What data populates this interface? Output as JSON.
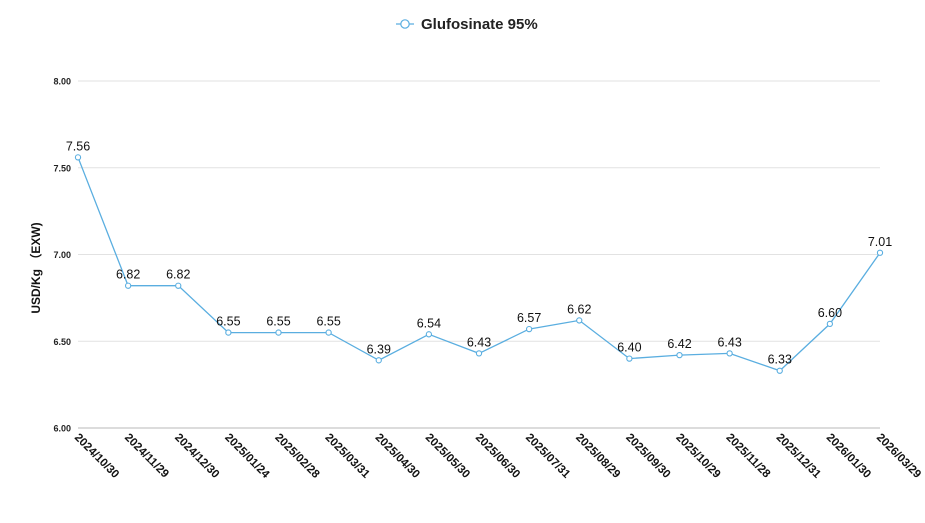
{
  "chart_data": {
    "type": "line",
    "x": [
      "2024/10/30",
      "2024/11/29",
      "2024/12/30",
      "2025/01/24",
      "2025/02/28",
      "2025/03/31",
      "2025/04/30",
      "2025/05/30",
      "2025/06/30",
      "2025/07/31",
      "2025/08/29",
      "2025/09/30",
      "2025/10/29",
      "2025/11/28",
      "2025/12/31",
      "2026/01/30",
      "2026/03/29"
    ],
    "series": [
      {
        "name": "Glufosinate 95%",
        "values": [
          7.56,
          6.82,
          6.82,
          6.55,
          6.55,
          6.55,
          6.39,
          6.54,
          6.43,
          6.57,
          6.62,
          6.4,
          6.42,
          6.43,
          6.33,
          6.6,
          7.01
        ],
        "value_labels": [
          "7.56",
          "6.82",
          "6.82",
          "6.55",
          "6.55",
          "6.55",
          "6.39",
          "6.54",
          "6.43",
          "6.57",
          "6.62",
          "6.40",
          "6.42",
          "6.43",
          "6.33",
          "6.60",
          "7.01"
        ],
        "color": "#5aaee0"
      }
    ],
    "ylabel": "USD/Kg （EXW)",
    "ylim": [
      6.0,
      8.0
    ],
    "yticks": [
      6.0,
      6.5,
      7.0,
      7.5,
      8.0
    ],
    "ytick_labels": [
      "6.00",
      "6.50",
      "7.00",
      "7.50",
      "8.00"
    ],
    "grid": "horizontal",
    "legend_position": "top-center"
  }
}
